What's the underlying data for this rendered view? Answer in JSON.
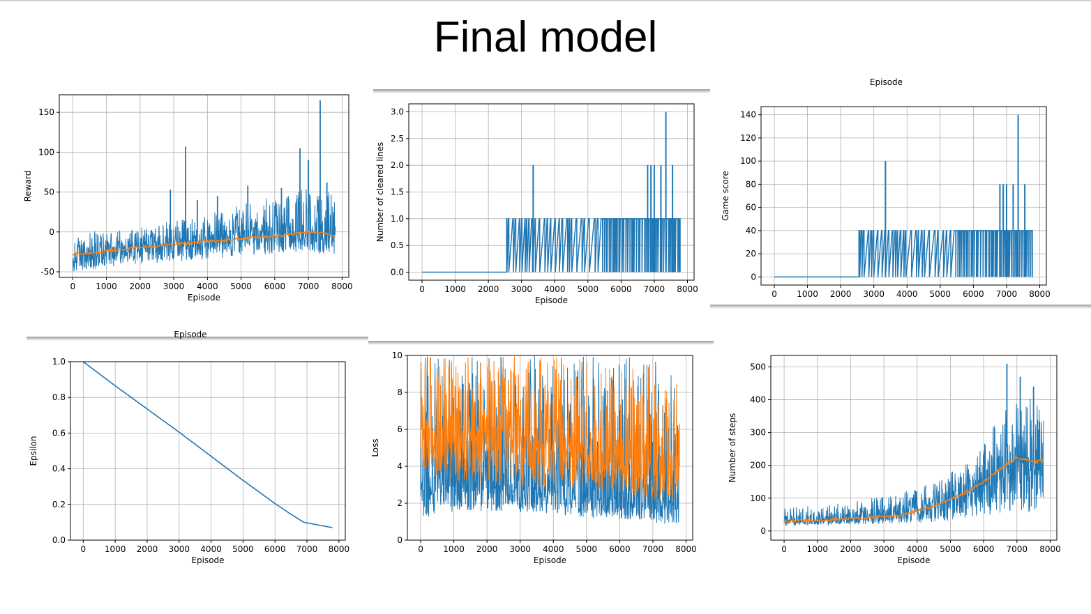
{
  "slide": {
    "title": "Final model"
  },
  "colors": {
    "series_1": "#1f77b4",
    "series_2": "#ff7f0e",
    "grid": "#b0b0b0"
  },
  "chart_data": [
    {
      "id": "reward",
      "type": "line",
      "title": "",
      "xlabel": "Episode",
      "ylabel": "Reward",
      "xlim": [
        -400,
        8200
      ],
      "ylim": [
        -57,
        172
      ],
      "xticks": [
        0,
        1000,
        2000,
        3000,
        4000,
        5000,
        6000,
        7000,
        8000
      ],
      "yticks": [
        -50,
        0,
        50,
        100,
        150
      ],
      "grid": true,
      "series": [
        {
          "color": "#1f77b4",
          "kind": "noisy-raw",
          "x": [
            0,
            1000,
            2000,
            3000,
            4000,
            5000,
            6000,
            7000,
            7800
          ],
          "y": [
            -28,
            -23,
            -18,
            -14,
            -11,
            -7,
            -4,
            0,
            -6
          ],
          "band": [
            [
              -50,
              0
            ],
            [
              -45,
              2
            ],
            [
              -40,
              6
            ],
            [
              -38,
              15
            ],
            [
              -35,
              25
            ],
            [
              -30,
              35
            ],
            [
              -28,
              45
            ],
            [
              -25,
              55
            ],
            [
              -30,
              50
            ]
          ],
          "spikes": [
            [
              2900,
              53
            ],
            [
              3350,
              107
            ],
            [
              3700,
              40
            ],
            [
              4300,
              45
            ],
            [
              5200,
              58
            ],
            [
              6200,
              55
            ],
            [
              6750,
              105
            ],
            [
              7000,
              90
            ],
            [
              7350,
              165
            ],
            [
              7550,
              62
            ]
          ]
        },
        {
          "color": "#ff7f0e",
          "kind": "smooth",
          "x": [
            0,
            500,
            1000,
            1500,
            2000,
            2500,
            3000,
            3500,
            4000,
            4500,
            5000,
            5500,
            6000,
            6500,
            7000,
            7500,
            7800
          ],
          "y": [
            -28,
            -26,
            -24,
            -22,
            -19,
            -18,
            -15,
            -14,
            -12,
            -11,
            -8,
            -7,
            -5,
            -3,
            0,
            -2,
            -7
          ]
        }
      ]
    },
    {
      "id": "cleared-lines",
      "type": "line",
      "title": "",
      "xlabel": "Episode",
      "ylabel": "Number of cleared lines",
      "xlim": [
        -400,
        8200
      ],
      "ylim": [
        -0.15,
        3.15
      ],
      "xticks": [
        0,
        1000,
        2000,
        3000,
        4000,
        5000,
        6000,
        7000,
        8000
      ],
      "yticks": [
        0.0,
        0.5,
        1.0,
        1.5,
        2.0,
        2.5,
        3.0
      ],
      "tick_labels_y": [
        "0.0",
        "0.5",
        "1.0",
        "1.5",
        "2.0",
        "2.5",
        "3.0"
      ],
      "grid": true,
      "series": [
        {
          "color": "#1f77b4",
          "kind": "step-spikes",
          "base": 0,
          "level": 1,
          "start": 2550,
          "dense_from": 5350,
          "end": 7780,
          "spikes": [
            [
              3350,
              2
            ],
            [
              6800,
              2
            ],
            [
              6900,
              2
            ],
            [
              7000,
              2
            ],
            [
              7200,
              2
            ],
            [
              7350,
              3
            ],
            [
              7550,
              2
            ]
          ]
        }
      ]
    },
    {
      "id": "game-score",
      "type": "line",
      "title": "Episode",
      "xlabel": "",
      "ylabel": "Game score",
      "xlim": [
        -400,
        8200
      ],
      "ylim": [
        -7,
        147
      ],
      "xticks": [
        0,
        1000,
        2000,
        3000,
        4000,
        5000,
        6000,
        7000,
        8000
      ],
      "yticks": [
        0,
        20,
        40,
        60,
        80,
        100,
        120,
        140
      ],
      "grid": true,
      "series": [
        {
          "color": "#1f77b4",
          "kind": "step-spikes",
          "base": 0,
          "level": 40,
          "start": 2550,
          "dense_from": 5350,
          "end": 7780,
          "spikes": [
            [
              3350,
              100
            ],
            [
              6800,
              80
            ],
            [
              6900,
              80
            ],
            [
              7000,
              80
            ],
            [
              7200,
              80
            ],
            [
              7350,
              140
            ],
            [
              7550,
              80
            ]
          ]
        }
      ]
    },
    {
      "id": "epsilon",
      "type": "line",
      "title": "Episode",
      "xlabel": "Episode",
      "ylabel": "Epsilon",
      "xlim": [
        -400,
        8200
      ],
      "ylim": [
        0.0,
        1.0
      ],
      "xticks": [
        0,
        1000,
        2000,
        3000,
        4000,
        5000,
        6000,
        7000,
        8000
      ],
      "yticks": [
        0.0,
        0.2,
        0.4,
        0.6,
        0.8,
        1.0
      ],
      "tick_labels_y": [
        "0.0",
        "0.2",
        "0.4",
        "0.6",
        "0.8",
        "1.0"
      ],
      "grid": true,
      "series": [
        {
          "color": "#1f77b4",
          "kind": "smooth",
          "x": [
            0,
            1000,
            2000,
            3000,
            4000,
            5000,
            6000,
            6500,
            6900,
            7800
          ],
          "y": [
            1.0,
            0.865,
            0.735,
            0.605,
            0.47,
            0.335,
            0.205,
            0.145,
            0.1,
            0.07
          ]
        }
      ]
    },
    {
      "id": "loss",
      "type": "line",
      "title": "",
      "xlabel": "Episode",
      "ylabel": "Loss",
      "xlim": [
        -400,
        8200
      ],
      "ylim": [
        0,
        10
      ],
      "xticks": [
        0,
        1000,
        2000,
        3000,
        4000,
        5000,
        6000,
        7000,
        8000
      ],
      "yticks": [
        0,
        2,
        4,
        6,
        8,
        10
      ],
      "grid": true,
      "series": [
        {
          "color": "#1f77b4",
          "kind": "noisy-raw",
          "x": [
            0,
            1000,
            2000,
            3000,
            4000,
            5000,
            6000,
            7000,
            7800
          ],
          "y": [
            3,
            3,
            3,
            2.8,
            2.6,
            2.4,
            2.2,
            2.0,
            2.2
          ],
          "band": [
            [
              1.2,
              10
            ],
            [
              1.5,
              10
            ],
            [
              1.6,
              10
            ],
            [
              1.5,
              10
            ],
            [
              1.4,
              10
            ],
            [
              1.2,
              10
            ],
            [
              1.1,
              10
            ],
            [
              0.9,
              10
            ],
            [
              0.8,
              10
            ]
          ],
          "spikes": []
        },
        {
          "color": "#ff7f0e",
          "kind": "noisy-raw",
          "x": [
            0,
            1000,
            2000,
            3000,
            4000,
            5000,
            6000,
            7000,
            7800
          ],
          "y": [
            6,
            5.8,
            5.6,
            5.4,
            5.2,
            5.0,
            4.7,
            4.2,
            4.5
          ],
          "band": [
            [
              3.8,
              10
            ],
            [
              3.2,
              10
            ],
            [
              3.0,
              10
            ],
            [
              2.9,
              10
            ],
            [
              2.8,
              10
            ],
            [
              2.7,
              10
            ],
            [
              2.6,
              9.5
            ],
            [
              2.0,
              9.5
            ],
            [
              2.4,
              9
            ]
          ],
          "spikes": []
        }
      ]
    },
    {
      "id": "steps",
      "type": "line",
      "title": "",
      "xlabel": "Episode",
      "ylabel": "Number of steps",
      "xlim": [
        -400,
        8200
      ],
      "ylim": [
        -28,
        535
      ],
      "xticks": [
        0,
        1000,
        2000,
        3000,
        4000,
        5000,
        6000,
        7000,
        8000
      ],
      "yticks": [
        0,
        100,
        200,
        300,
        400,
        500
      ],
      "grid": true,
      "series": [
        {
          "color": "#1f77b4",
          "kind": "noisy-raw",
          "x": [
            0,
            1000,
            2000,
            3000,
            4000,
            5000,
            6000,
            6500,
            7000,
            7500,
            7800
          ],
          "y": [
            30,
            32,
            38,
            45,
            60,
            90,
            140,
            180,
            210,
            200,
            190
          ],
          "band": [
            [
              15,
              70
            ],
            [
              18,
              80
            ],
            [
              20,
              90
            ],
            [
              22,
              110
            ],
            [
              25,
              130
            ],
            [
              30,
              180
            ],
            [
              45,
              280
            ],
            [
              50,
              350
            ],
            [
              60,
              420
            ],
            [
              55,
              400
            ],
            [
              80,
              360
            ]
          ],
          "spikes": [
            [
              6700,
              510
            ],
            [
              7100,
              470
            ],
            [
              7500,
              440
            ]
          ]
        },
        {
          "color": "#ff7f0e",
          "kind": "smooth",
          "x": [
            0,
            500,
            1000,
            1500,
            2000,
            2500,
            3000,
            3500,
            4000,
            4500,
            5000,
            5500,
            6000,
            6500,
            7000,
            7500,
            7800
          ],
          "y": [
            30,
            31,
            33,
            35,
            38,
            41,
            44,
            48,
            60,
            75,
            95,
            120,
            150,
            190,
            225,
            210,
            215
          ]
        }
      ]
    }
  ]
}
